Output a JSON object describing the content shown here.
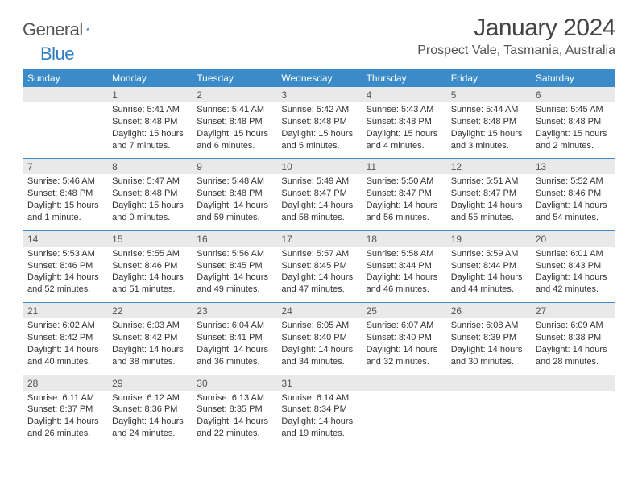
{
  "logo": {
    "word1": "General",
    "word2": "Blue"
  },
  "title": "January 2024",
  "location": "Prospect Vale, Tasmania, Australia",
  "colors": {
    "header_bg": "#3b8bc9",
    "header_text": "#ffffff",
    "daynum_bg": "#e9e9e9",
    "daynum_text": "#555555",
    "body_text": "#333333",
    "rule": "#3b8bc9",
    "logo_gray": "#555555",
    "logo_blue": "#2f7bbf"
  },
  "day_names": [
    "Sunday",
    "Monday",
    "Tuesday",
    "Wednesday",
    "Thursday",
    "Friday",
    "Saturday"
  ],
  "weeks": [
    [
      {
        "num": "",
        "sunrise": "",
        "sunset": "",
        "daylight": ""
      },
      {
        "num": "1",
        "sunrise": "Sunrise: 5:41 AM",
        "sunset": "Sunset: 8:48 PM",
        "daylight": "Daylight: 15 hours and 7 minutes."
      },
      {
        "num": "2",
        "sunrise": "Sunrise: 5:41 AM",
        "sunset": "Sunset: 8:48 PM",
        "daylight": "Daylight: 15 hours and 6 minutes."
      },
      {
        "num": "3",
        "sunrise": "Sunrise: 5:42 AM",
        "sunset": "Sunset: 8:48 PM",
        "daylight": "Daylight: 15 hours and 5 minutes."
      },
      {
        "num": "4",
        "sunrise": "Sunrise: 5:43 AM",
        "sunset": "Sunset: 8:48 PM",
        "daylight": "Daylight: 15 hours and 4 minutes."
      },
      {
        "num": "5",
        "sunrise": "Sunrise: 5:44 AM",
        "sunset": "Sunset: 8:48 PM",
        "daylight": "Daylight: 15 hours and 3 minutes."
      },
      {
        "num": "6",
        "sunrise": "Sunrise: 5:45 AM",
        "sunset": "Sunset: 8:48 PM",
        "daylight": "Daylight: 15 hours and 2 minutes."
      }
    ],
    [
      {
        "num": "7",
        "sunrise": "Sunrise: 5:46 AM",
        "sunset": "Sunset: 8:48 PM",
        "daylight": "Daylight: 15 hours and 1 minute."
      },
      {
        "num": "8",
        "sunrise": "Sunrise: 5:47 AM",
        "sunset": "Sunset: 8:48 PM",
        "daylight": "Daylight: 15 hours and 0 minutes."
      },
      {
        "num": "9",
        "sunrise": "Sunrise: 5:48 AM",
        "sunset": "Sunset: 8:48 PM",
        "daylight": "Daylight: 14 hours and 59 minutes."
      },
      {
        "num": "10",
        "sunrise": "Sunrise: 5:49 AM",
        "sunset": "Sunset: 8:47 PM",
        "daylight": "Daylight: 14 hours and 58 minutes."
      },
      {
        "num": "11",
        "sunrise": "Sunrise: 5:50 AM",
        "sunset": "Sunset: 8:47 PM",
        "daylight": "Daylight: 14 hours and 56 minutes."
      },
      {
        "num": "12",
        "sunrise": "Sunrise: 5:51 AM",
        "sunset": "Sunset: 8:47 PM",
        "daylight": "Daylight: 14 hours and 55 minutes."
      },
      {
        "num": "13",
        "sunrise": "Sunrise: 5:52 AM",
        "sunset": "Sunset: 8:46 PM",
        "daylight": "Daylight: 14 hours and 54 minutes."
      }
    ],
    [
      {
        "num": "14",
        "sunrise": "Sunrise: 5:53 AM",
        "sunset": "Sunset: 8:46 PM",
        "daylight": "Daylight: 14 hours and 52 minutes."
      },
      {
        "num": "15",
        "sunrise": "Sunrise: 5:55 AM",
        "sunset": "Sunset: 8:46 PM",
        "daylight": "Daylight: 14 hours and 51 minutes."
      },
      {
        "num": "16",
        "sunrise": "Sunrise: 5:56 AM",
        "sunset": "Sunset: 8:45 PM",
        "daylight": "Daylight: 14 hours and 49 minutes."
      },
      {
        "num": "17",
        "sunrise": "Sunrise: 5:57 AM",
        "sunset": "Sunset: 8:45 PM",
        "daylight": "Daylight: 14 hours and 47 minutes."
      },
      {
        "num": "18",
        "sunrise": "Sunrise: 5:58 AM",
        "sunset": "Sunset: 8:44 PM",
        "daylight": "Daylight: 14 hours and 46 minutes."
      },
      {
        "num": "19",
        "sunrise": "Sunrise: 5:59 AM",
        "sunset": "Sunset: 8:44 PM",
        "daylight": "Daylight: 14 hours and 44 minutes."
      },
      {
        "num": "20",
        "sunrise": "Sunrise: 6:01 AM",
        "sunset": "Sunset: 8:43 PM",
        "daylight": "Daylight: 14 hours and 42 minutes."
      }
    ],
    [
      {
        "num": "21",
        "sunrise": "Sunrise: 6:02 AM",
        "sunset": "Sunset: 8:42 PM",
        "daylight": "Daylight: 14 hours and 40 minutes."
      },
      {
        "num": "22",
        "sunrise": "Sunrise: 6:03 AM",
        "sunset": "Sunset: 8:42 PM",
        "daylight": "Daylight: 14 hours and 38 minutes."
      },
      {
        "num": "23",
        "sunrise": "Sunrise: 6:04 AM",
        "sunset": "Sunset: 8:41 PM",
        "daylight": "Daylight: 14 hours and 36 minutes."
      },
      {
        "num": "24",
        "sunrise": "Sunrise: 6:05 AM",
        "sunset": "Sunset: 8:40 PM",
        "daylight": "Daylight: 14 hours and 34 minutes."
      },
      {
        "num": "25",
        "sunrise": "Sunrise: 6:07 AM",
        "sunset": "Sunset: 8:40 PM",
        "daylight": "Daylight: 14 hours and 32 minutes."
      },
      {
        "num": "26",
        "sunrise": "Sunrise: 6:08 AM",
        "sunset": "Sunset: 8:39 PM",
        "daylight": "Daylight: 14 hours and 30 minutes."
      },
      {
        "num": "27",
        "sunrise": "Sunrise: 6:09 AM",
        "sunset": "Sunset: 8:38 PM",
        "daylight": "Daylight: 14 hours and 28 minutes."
      }
    ],
    [
      {
        "num": "28",
        "sunrise": "Sunrise: 6:11 AM",
        "sunset": "Sunset: 8:37 PM",
        "daylight": "Daylight: 14 hours and 26 minutes."
      },
      {
        "num": "29",
        "sunrise": "Sunrise: 6:12 AM",
        "sunset": "Sunset: 8:36 PM",
        "daylight": "Daylight: 14 hours and 24 minutes."
      },
      {
        "num": "30",
        "sunrise": "Sunrise: 6:13 AM",
        "sunset": "Sunset: 8:35 PM",
        "daylight": "Daylight: 14 hours and 22 minutes."
      },
      {
        "num": "31",
        "sunrise": "Sunrise: 6:14 AM",
        "sunset": "Sunset: 8:34 PM",
        "daylight": "Daylight: 14 hours and 19 minutes."
      },
      {
        "num": "",
        "sunrise": "",
        "sunset": "",
        "daylight": ""
      },
      {
        "num": "",
        "sunrise": "",
        "sunset": "",
        "daylight": ""
      },
      {
        "num": "",
        "sunrise": "",
        "sunset": "",
        "daylight": ""
      }
    ]
  ]
}
